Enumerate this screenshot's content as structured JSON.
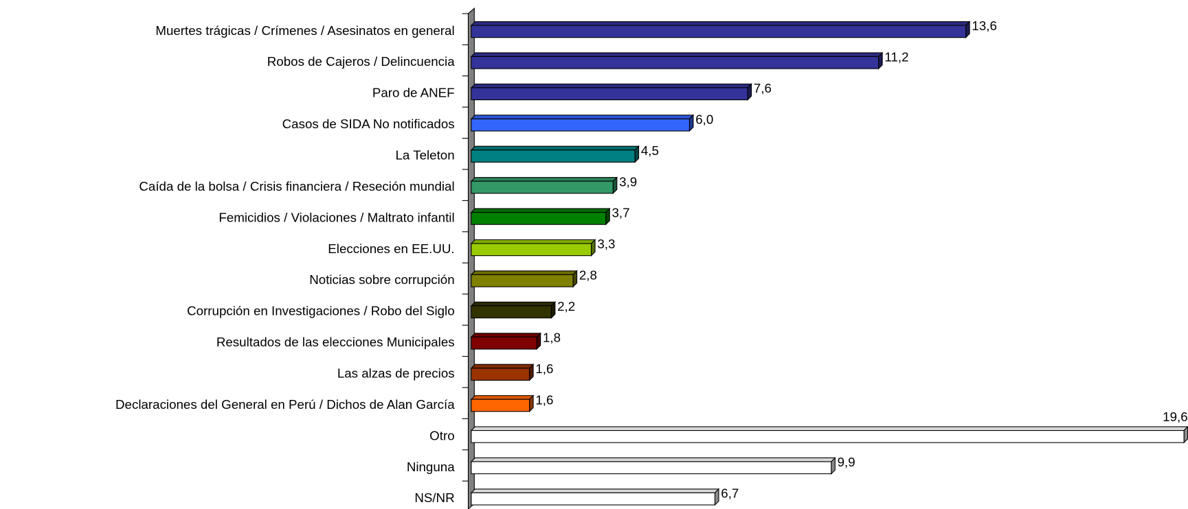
{
  "chart_data": {
    "type": "hbar3d",
    "categories": [
      "Muertes trágicas / Crímenes / Asesinatos en general",
      "Robos de Cajeros / Delincuencia",
      "Paro de ANEF",
      "Casos de SIDA No notificados",
      "La Teleton",
      "Caída de la bolsa / Crisis financiera / Reseción mundial",
      "Femicidios / Violaciones / Maltrato infantil",
      "Elecciones en EE.UU.",
      "Noticias sobre corrupción",
      "Corrupción en Investigaciones / Robo del Siglo",
      "Resultados de las elecciones Municipales",
      "Las alzas de precios",
      "Declaraciones del General en Perú / Dichos de Alan García",
      "Otro",
      "Ninguna",
      "NS/NR"
    ],
    "values": [
      13.6,
      11.2,
      7.6,
      6.0,
      4.5,
      3.9,
      3.7,
      3.3,
      2.8,
      2.2,
      1.8,
      1.6,
      1.6,
      19.6,
      9.9,
      6.7
    ],
    "value_labels": [
      "13,6",
      "11,2",
      "7,6",
      "6,0",
      "4,5",
      "3,9",
      "3,7",
      "3,3",
      "2,8",
      "2,2",
      "1,8",
      "1,6",
      "1,6",
      "19,6",
      "9,9",
      "6,7"
    ],
    "colors": [
      "#333399",
      "#333399",
      "#333399",
      "#3366ff",
      "#008080",
      "#339966",
      "#008000",
      "#99cc00",
      "#808000",
      "#333300",
      "#800000",
      "#993300",
      "#ff6600",
      "#ffffff",
      "#ffffff",
      "#ffffff"
    ],
    "xlim": [
      0,
      20
    ]
  }
}
